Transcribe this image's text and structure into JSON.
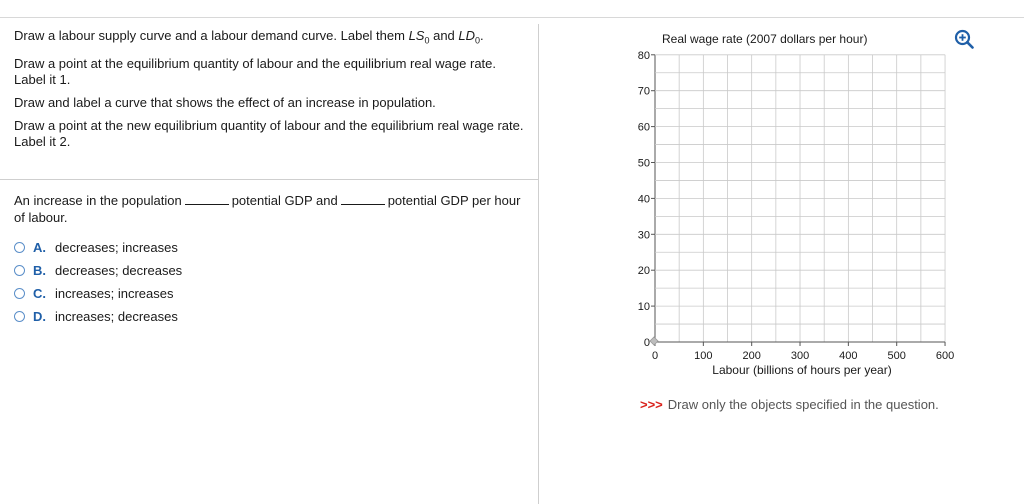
{
  "instructions": {
    "line1_prefix": "Draw a labour supply curve and a labour demand curve. Label them ",
    "ls_label": "LS",
    "ls_sub": "0",
    "and_text": " and ",
    "ld_label": "LD",
    "ld_sub": "0",
    "line1_suffix": ".",
    "line2": "Draw a point at the equilibrium quantity of labour and the equilibrium real wage rate. Label it 1.",
    "line3": "Draw and label a curve that shows the effect of an increase in population.",
    "line4": "Draw a point at the new equilibrium quantity of labour and the equilibrium real wage rate. Label it 2."
  },
  "question": {
    "part1": "An increase in the population",
    "part2": "potential GDP and",
    "part3": "potential GDP per hour of labour.",
    "choices": [
      {
        "letter": "A.",
        "text": "decreases; increases"
      },
      {
        "letter": "B.",
        "text": "decreases; decreases"
      },
      {
        "letter": "C.",
        "text": "increases; increases"
      },
      {
        "letter": "D.",
        "text": "increases; decreases"
      }
    ]
  },
  "graph": {
    "ylabel": "Real wage rate (2007 dollars per hour)",
    "xlabel": "Labour (billions of hours per year)",
    "y_ticks": [
      "0",
      "10",
      "20",
      "30",
      "40",
      "50",
      "60",
      "70",
      "80"
    ],
    "x_ticks": [
      "0",
      "100",
      "200",
      "300",
      "400",
      "500",
      "600"
    ],
    "zoom_icon": "zoom-in-icon"
  },
  "note": {
    "arrows": ">>>",
    "text": "Draw only the objects specified in the question."
  },
  "colors": {
    "accent": "#1f5fa8",
    "note_arrows": "#d9211b",
    "radio": "#5b8fc9"
  }
}
